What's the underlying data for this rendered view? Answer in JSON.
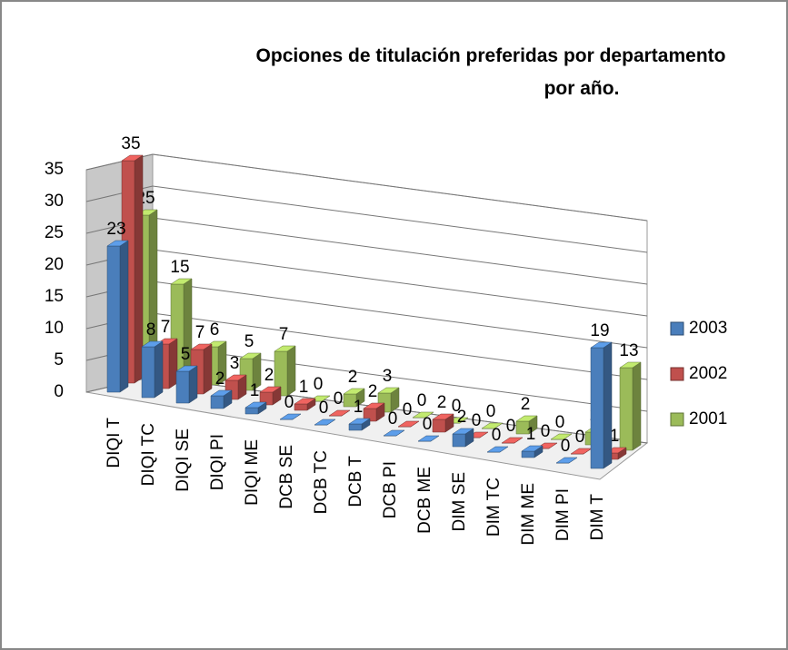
{
  "chart_data": {
    "type": "bar3d",
    "title": "Opciones de titulación preferidas  por departamento por año.",
    "categories": [
      "DIQI T",
      "DIQI TC",
      "DIQI SE",
      "DIQI PI",
      "DIQI ME",
      "DCB SE",
      "DCB TC",
      "DCB T",
      "DCB PI",
      "DCB ME",
      "DIM SE",
      "DIM TC",
      "DIM ME",
      "DIM PI",
      "DIM T"
    ],
    "series": [
      {
        "name": "2003",
        "color": "#4a7ebb",
        "values": [
          23,
          8,
          5,
          2,
          1,
          0,
          0,
          1,
          0,
          0,
          2,
          0,
          1,
          0,
          19
        ]
      },
      {
        "name": "2002",
        "color": "#c0504d",
        "values": [
          35,
          7,
          7,
          3,
          2,
          1,
          0,
          2,
          0,
          2,
          0,
          0,
          0,
          0,
          1
        ]
      },
      {
        "name": "2001",
        "color": "#9bbb59",
        "values": [
          25,
          15,
          6,
          5,
          7,
          0,
          2,
          3,
          0,
          0,
          0,
          2,
          0,
          2,
          13
        ]
      }
    ],
    "ylim": [
      0,
      35
    ],
    "yticks": [
      0,
      5,
      10,
      15,
      20,
      25,
      30,
      35
    ],
    "grid": true,
    "legend": "right"
  }
}
